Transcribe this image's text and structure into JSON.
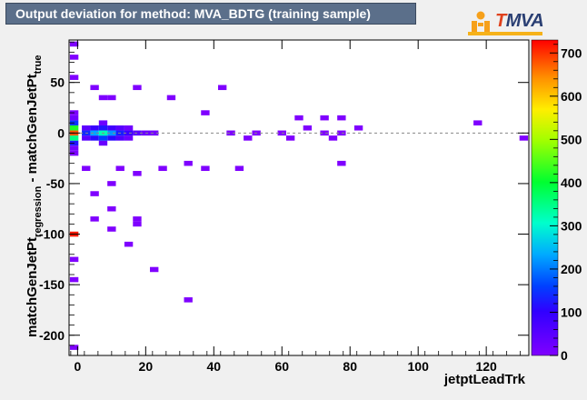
{
  "header": {
    "title": "Output deviation for method: MVA_BDTG (training sample)"
  },
  "logo": {
    "prefix": "T",
    "name": "MVA"
  },
  "chart_data": {
    "type": "heatmap",
    "title": "Output deviation for method: MVA_BDTG (training sample)",
    "xlabel": "jetptLeadTrk",
    "ylabel_main": "matchGenJetPt",
    "ylabel_sub1": "regression",
    "ylabel_mid": " - matchGenJetPt",
    "ylabel_sub2": "true",
    "xlim": [
      -2.5,
      132.5
    ],
    "ylim": [
      -220,
      92
    ],
    "x_ticks": [
      0,
      20,
      40,
      60,
      80,
      100,
      120
    ],
    "y_ticks": [
      50,
      0,
      -50,
      -100,
      -150,
      -200
    ],
    "z_ticks": [
      0,
      100,
      200,
      300,
      400,
      500,
      600,
      700
    ],
    "zlim": [
      0,
      730
    ],
    "reference_line_y": 0,
    "bin_width": [
      2.5,
      5
    ],
    "bins": [
      {
        "x": -1,
        "y": -100,
        "z": 715
      },
      {
        "x": -1,
        "y": 0,
        "z": 680
      },
      {
        "x": -1,
        "y": 5,
        "z": 420
      },
      {
        "x": -1,
        "y": -5,
        "z": 350
      },
      {
        "x": -1,
        "y": 10,
        "z": 150
      },
      {
        "x": -1,
        "y": -10,
        "z": 120
      },
      {
        "x": -1,
        "y": 15,
        "z": 20
      },
      {
        "x": -1,
        "y": -15,
        "z": 15
      },
      {
        "x": -1,
        "y": 20,
        "z": 5
      },
      {
        "x": -1,
        "y": -20,
        "z": 5
      },
      {
        "x": -1,
        "y": 88,
        "z": 2
      },
      {
        "x": -1,
        "y": 75,
        "z": 1
      },
      {
        "x": -1,
        "y": 55,
        "z": 1
      },
      {
        "x": -1,
        "y": -125,
        "z": 1
      },
      {
        "x": -1,
        "y": -145,
        "z": 1
      },
      {
        "x": -1,
        "y": -212,
        "z": 1
      },
      {
        "x": 7.5,
        "y": 0,
        "z": 320
      },
      {
        "x": 5,
        "y": 0,
        "z": 230
      },
      {
        "x": 10,
        "y": 0,
        "z": 220
      },
      {
        "x": 2.5,
        "y": 0,
        "z": 140
      },
      {
        "x": 12.5,
        "y": 0,
        "z": 130
      },
      {
        "x": 7.5,
        "y": -5,
        "z": 160
      },
      {
        "x": 5,
        "y": -5,
        "z": 110
      },
      {
        "x": 10,
        "y": -5,
        "z": 110
      },
      {
        "x": 7.5,
        "y": 5,
        "z": 120
      },
      {
        "x": 5,
        "y": 5,
        "z": 90
      },
      {
        "x": 10,
        "y": 5,
        "z": 80
      },
      {
        "x": 15,
        "y": 0,
        "z": 90
      },
      {
        "x": 17.5,
        "y": 0,
        "z": 50
      },
      {
        "x": 12.5,
        "y": -5,
        "z": 60
      },
      {
        "x": 2.5,
        "y": -5,
        "z": 50
      },
      {
        "x": 2.5,
        "y": 5,
        "z": 45
      },
      {
        "x": 12.5,
        "y": 5,
        "z": 50
      },
      {
        "x": 7.5,
        "y": 10,
        "z": 25
      },
      {
        "x": 7.5,
        "y": -10,
        "z": 30
      },
      {
        "x": 15,
        "y": -5,
        "z": 25
      },
      {
        "x": 15,
        "y": 5,
        "z": 20
      },
      {
        "x": 20,
        "y": 0,
        "z": 25
      },
      {
        "x": 22.5,
        "y": 0,
        "z": 15
      },
      {
        "x": 60,
        "y": 0,
        "z": 3
      },
      {
        "x": 45,
        "y": 0,
        "z": 4
      },
      {
        "x": 52.5,
        "y": 0,
        "z": 3
      },
      {
        "x": 5,
        "y": 45,
        "z": 2
      },
      {
        "x": 7.5,
        "y": 35,
        "z": 2
      },
      {
        "x": 10,
        "y": 35,
        "z": 1
      },
      {
        "x": 17.5,
        "y": 45,
        "z": 1
      },
      {
        "x": 27.5,
        "y": 35,
        "z": 1
      },
      {
        "x": 42.5,
        "y": 45,
        "z": 1
      },
      {
        "x": 37.5,
        "y": 20,
        "z": 1
      },
      {
        "x": 2.5,
        "y": -35,
        "z": 2
      },
      {
        "x": 12.5,
        "y": -35,
        "z": 1
      },
      {
        "x": 17.5,
        "y": -40,
        "z": 1
      },
      {
        "x": 25,
        "y": -35,
        "z": 1
      },
      {
        "x": 32.5,
        "y": -30,
        "z": 1
      },
      {
        "x": 37.5,
        "y": -35,
        "z": 1
      },
      {
        "x": 47.5,
        "y": -35,
        "z": 1
      },
      {
        "x": 10,
        "y": -50,
        "z": 1
      },
      {
        "x": 5,
        "y": -60,
        "z": 1
      },
      {
        "x": 10,
        "y": -75,
        "z": 1
      },
      {
        "x": 5,
        "y": -85,
        "z": 1
      },
      {
        "x": 17.5,
        "y": -85,
        "z": 1
      },
      {
        "x": 10,
        "y": -95,
        "z": 1
      },
      {
        "x": 17.5,
        "y": -90,
        "z": 1
      },
      {
        "x": 15,
        "y": -110,
        "z": 1
      },
      {
        "x": 22.5,
        "y": -135,
        "z": 1
      },
      {
        "x": 32.5,
        "y": -165,
        "z": 1
      },
      {
        "x": 65,
        "y": 15,
        "z": 1
      },
      {
        "x": 72.5,
        "y": 15,
        "z": 1
      },
      {
        "x": 77.5,
        "y": 15,
        "z": 1
      },
      {
        "x": 67.5,
        "y": 5,
        "z": 1
      },
      {
        "x": 82.5,
        "y": 5,
        "z": 1
      },
      {
        "x": 72.5,
        "y": 0,
        "z": 1
      },
      {
        "x": 77.5,
        "y": 0,
        "z": 1
      },
      {
        "x": 75,
        "y": -5,
        "z": 1
      },
      {
        "x": 77.5,
        "y": -30,
        "z": 1
      },
      {
        "x": 117.5,
        "y": 10,
        "z": 1
      },
      {
        "x": 131,
        "y": -5,
        "z": 1
      },
      {
        "x": 50,
        "y": -5,
        "z": 1
      },
      {
        "x": 62.5,
        "y": -5,
        "z": 1
      }
    ]
  }
}
